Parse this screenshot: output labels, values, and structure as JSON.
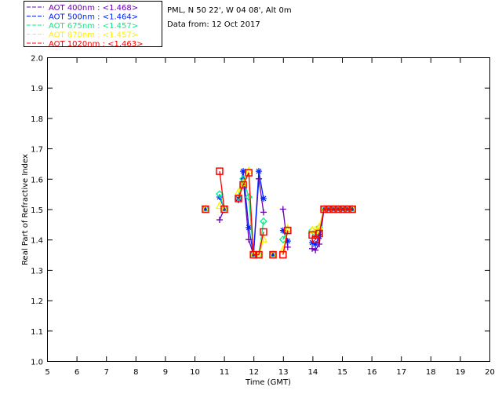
{
  "header": {
    "site": "PML, N 50 22', W 04 08', Alt 0m",
    "date": "Data from: 12 Oct 2017"
  },
  "chart_data": {
    "type": "line",
    "title": "",
    "xlabel": "Time (GMT)",
    "ylabel": "Real Part of Refractive Index",
    "xlim": [
      5,
      20
    ],
    "ylim": [
      1.0,
      2.0
    ],
    "xticks": [
      "5",
      "6",
      "7",
      "8",
      "9",
      "10",
      "11",
      "12",
      "13",
      "14",
      "15",
      "16",
      "17",
      "18",
      "19",
      "20"
    ],
    "yticks": [
      "1.0",
      "1.1",
      "1.2",
      "1.3",
      "1.4",
      "1.5",
      "1.6",
      "1.7",
      "1.8",
      "1.9",
      "2.0"
    ],
    "grid": false,
    "legend_position": "top-left",
    "series": [
      {
        "name": "AOT  400nm : <1.468>",
        "color": "#6a00b0",
        "marker": "plus",
        "points": [
          [
            10.37,
            1.5
          ],
          null,
          [
            10.85,
            1.465
          ],
          [
            11.01,
            1.5
          ],
          null,
          [
            11.49,
            1.53
          ],
          [
            11.65,
            1.6
          ],
          [
            11.84,
            1.4
          ],
          [
            12.0,
            1.35
          ],
          [
            12.18,
            1.6
          ],
          [
            12.34,
            1.49
          ],
          null,
          [
            12.66,
            1.35
          ],
          null,
          [
            13.0,
            1.5
          ],
          [
            13.16,
            1.375
          ],
          null,
          [
            13.99,
            1.37
          ],
          [
            14.1,
            1.365
          ],
          [
            14.23,
            1.385
          ],
          [
            14.39,
            1.5
          ],
          [
            14.55,
            1.5
          ],
          [
            14.71,
            1.5
          ],
          [
            14.87,
            1.5
          ],
          [
            15.03,
            1.5
          ],
          [
            15.19,
            1.5
          ],
          [
            15.35,
            1.5
          ]
        ]
      },
      {
        "name": "AOT  500nm : <1.464>",
        "color": "#0022ff",
        "marker": "star",
        "points": [
          [
            10.37,
            1.5
          ],
          null,
          [
            10.85,
            1.54
          ],
          [
            11.01,
            1.5
          ],
          null,
          [
            11.49,
            1.535
          ],
          [
            11.65,
            1.625
          ],
          [
            11.84,
            1.44
          ],
          [
            12.0,
            1.35
          ],
          [
            12.18,
            1.625
          ],
          [
            12.34,
            1.535
          ],
          null,
          [
            12.66,
            1.35
          ],
          null,
          [
            13.0,
            1.43
          ],
          [
            13.16,
            1.395
          ],
          null,
          [
            13.99,
            1.39
          ],
          [
            14.1,
            1.385
          ],
          [
            14.23,
            1.41
          ],
          [
            14.39,
            1.5
          ],
          [
            14.55,
            1.5
          ],
          [
            14.71,
            1.5
          ],
          [
            14.87,
            1.5
          ],
          [
            15.03,
            1.5
          ],
          [
            15.19,
            1.5
          ],
          [
            15.35,
            1.5
          ]
        ]
      },
      {
        "name": "AOT  675nm : <1.457>",
        "color": "#00ee88",
        "marker": "diamond",
        "points": [
          [
            10.37,
            1.5
          ],
          null,
          [
            10.85,
            1.55
          ],
          [
            11.01,
            1.5
          ],
          null,
          [
            11.49,
            1.54
          ],
          [
            11.65,
            1.6
          ],
          [
            11.84,
            1.54
          ],
          [
            12.0,
            1.35
          ],
          [
            12.18,
            1.35
          ],
          [
            12.34,
            1.46
          ],
          null,
          [
            12.66,
            1.35
          ],
          null,
          [
            13.0,
            1.4
          ],
          [
            13.16,
            1.43
          ],
          null,
          [
            13.99,
            1.43
          ],
          [
            14.1,
            1.42
          ],
          [
            14.23,
            1.44
          ],
          [
            14.39,
            1.5
          ],
          [
            14.55,
            1.5
          ],
          [
            14.71,
            1.5
          ],
          [
            14.87,
            1.5
          ],
          [
            15.03,
            1.5
          ],
          [
            15.19,
            1.5
          ],
          [
            15.35,
            1.5
          ]
        ]
      },
      {
        "name": "AOT  870nm : <1.457>",
        "color": "#ffee00",
        "marker": "triangle",
        "points": [
          [
            10.37,
            1.5
          ],
          null,
          [
            10.85,
            1.51
          ],
          [
            11.01,
            1.5
          ],
          null,
          [
            11.49,
            1.555
          ],
          [
            11.65,
            1.585
          ],
          [
            11.84,
            1.625
          ],
          [
            12.0,
            1.35
          ],
          [
            12.18,
            1.35
          ],
          [
            12.34,
            1.4
          ],
          null,
          [
            12.66,
            1.35
          ],
          null,
          [
            13.0,
            1.365
          ],
          [
            13.16,
            1.435
          ],
          null,
          [
            13.99,
            1.43
          ],
          [
            14.1,
            1.43
          ],
          [
            14.23,
            1.44
          ],
          [
            14.39,
            1.5
          ],
          [
            14.55,
            1.5
          ],
          [
            14.71,
            1.5
          ],
          [
            14.87,
            1.5
          ],
          [
            15.03,
            1.5
          ],
          [
            15.19,
            1.5
          ],
          [
            15.35,
            1.5
          ]
        ]
      },
      {
        "name": "AOT 1020nm : <1.463>",
        "color": "#ff0000",
        "marker": "square",
        "points": [
          [
            10.37,
            1.5
          ],
          null,
          [
            10.85,
            1.625
          ],
          [
            11.01,
            1.5
          ],
          null,
          [
            11.49,
            1.535
          ],
          [
            11.65,
            1.58
          ],
          [
            11.84,
            1.62
          ],
          [
            12.0,
            1.35
          ],
          [
            12.18,
            1.35
          ],
          [
            12.34,
            1.425
          ],
          null,
          [
            12.66,
            1.35
          ],
          null,
          [
            13.0,
            1.35
          ],
          [
            13.16,
            1.43
          ],
          null,
          [
            13.99,
            1.415
          ],
          [
            14.1,
            1.4
          ],
          [
            14.23,
            1.42
          ],
          [
            14.39,
            1.5
          ],
          [
            14.55,
            1.5
          ],
          [
            14.71,
            1.5
          ],
          [
            14.87,
            1.5
          ],
          [
            15.03,
            1.5
          ],
          [
            15.19,
            1.5
          ],
          [
            15.35,
            1.5
          ]
        ]
      }
    ]
  }
}
